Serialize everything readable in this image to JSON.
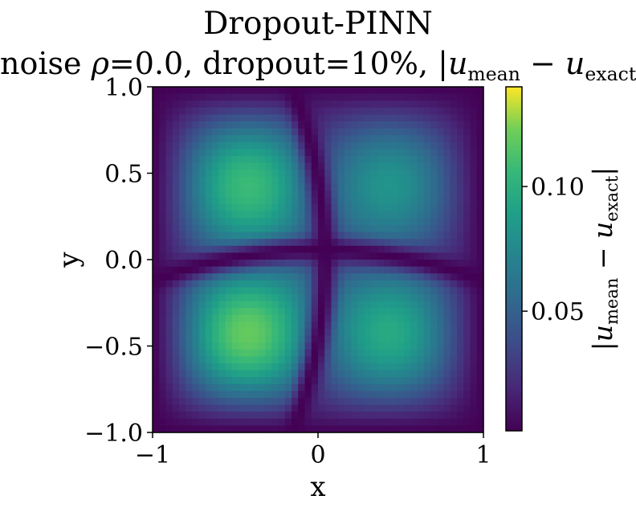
{
  "chart_data": {
    "type": "heatmap",
    "title": "Dropout-PINN",
    "subtitle": {
      "prefix": "noise ",
      "rho_symbol": "ρ",
      "mid": "=0.0, dropout=10%, |",
      "u1": "u",
      "sub1": "mean",
      "minus": " − ",
      "u2": "u",
      "sub2": "exact",
      "suffix": "|"
    },
    "xlabel": "x",
    "ylabel": "y",
    "xlim": [
      -1,
      1
    ],
    "ylim": [
      -1,
      1
    ],
    "xticks": [
      {
        "value": -1,
        "label": "−1"
      },
      {
        "value": 0,
        "label": "0"
      },
      {
        "value": 1,
        "label": "1"
      }
    ],
    "yticks": [
      {
        "value": 1.0,
        "label": "1.0"
      },
      {
        "value": 0.5,
        "label": "0.5"
      },
      {
        "value": 0.0,
        "label": "0.0"
      },
      {
        "value": -0.5,
        "label": "−0.5"
      },
      {
        "value": -1.0,
        "label": "−1.0"
      }
    ],
    "colormap": "viridis",
    "value_range": [
      0.002,
      0.14
    ],
    "colorbar": {
      "label": {
        "bar": "|",
        "u1": "u",
        "sub1": "mean",
        "minus": " − ",
        "u2": "u",
        "sub2": "exact"
      },
      "ticks": [
        {
          "value": 0.05,
          "label": "0.05"
        },
        {
          "value": 0.1,
          "label": "0.10"
        }
      ]
    },
    "grid": false,
    "resolution": [
      50,
      50
    ],
    "peaks": [
      {
        "x": -0.52,
        "y": 0.36,
        "value": 0.121
      },
      {
        "x": 0.38,
        "y": 0.48,
        "value": 0.092
      },
      {
        "x": -0.53,
        "y": -0.45,
        "value": 0.135
      },
      {
        "x": 0.5,
        "y": -0.55,
        "value": 0.108
      }
    ]
  }
}
